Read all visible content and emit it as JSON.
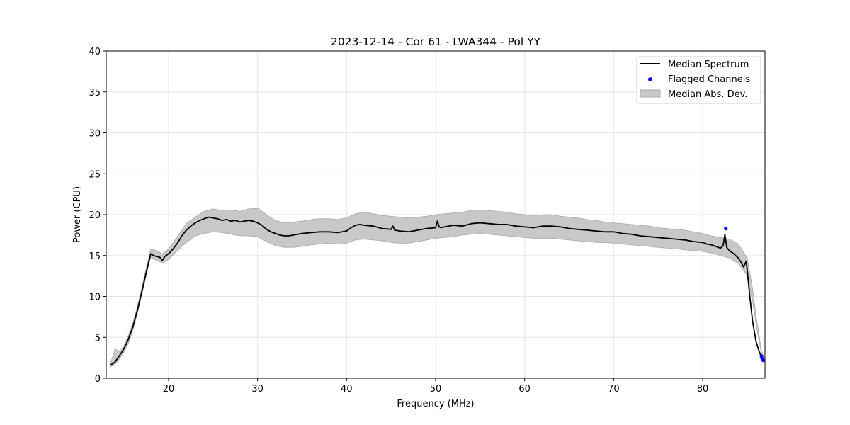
{
  "chart_data": {
    "type": "line",
    "title": "2023-12-14 - Cor 61 - LWA344 - Pol YY",
    "xlabel": "Frequency (MHz)",
    "ylabel": "Power (CPU)",
    "xlim": [
      13.0,
      87.0
    ],
    "ylim": [
      0,
      40
    ],
    "x_ticks": [
      20,
      30,
      40,
      50,
      60,
      70,
      80
    ],
    "y_ticks": [
      0,
      5,
      10,
      15,
      20,
      25,
      30,
      35,
      40
    ],
    "grid": true,
    "legend_position": "top-right",
    "colors": {
      "median": "#000000",
      "flagged": "#0000ff",
      "band": "#c8c8c8",
      "band_edge": "#a8a8a8"
    },
    "series": [
      {
        "name": "Median Spectrum",
        "kind": "line",
        "x": [
          13.5,
          14.0,
          14.5,
          15.0,
          15.5,
          16.0,
          16.5,
          17.0,
          17.5,
          18.0,
          18.3,
          18.6,
          19.0,
          19.3,
          19.6,
          20.0,
          20.5,
          21.0,
          21.5,
          22.0,
          22.5,
          23.0,
          23.5,
          24.0,
          24.5,
          25.0,
          25.5,
          26.0,
          26.5,
          27.0,
          27.5,
          28.0,
          28.5,
          29.0,
          29.5,
          30.0,
          30.5,
          31.0,
          31.5,
          32.0,
          32.5,
          33.0,
          33.5,
          34.0,
          35.0,
          36.0,
          37.0,
          38.0,
          39.0,
          40.0,
          40.5,
          41.0,
          41.5,
          42.0,
          43.0,
          44.0,
          45.0,
          45.2,
          45.4,
          46.0,
          47.0,
          48.0,
          49.0,
          50.0,
          50.2,
          50.4,
          50.6,
          51.0,
          52.0,
          53.0,
          54.0,
          55.0,
          56.0,
          57.0,
          58.0,
          59.0,
          60.0,
          61.0,
          62.0,
          63.0,
          64.0,
          65.0,
          66.0,
          67.0,
          68.0,
          69.0,
          70.0,
          71.0,
          72.0,
          73.0,
          74.0,
          75.0,
          76.0,
          77.0,
          78.0,
          79.0,
          80.0,
          80.5,
          81.0,
          81.5,
          82.0,
          82.3,
          82.5,
          82.7,
          83.0,
          83.5,
          84.0,
          84.3,
          84.6,
          84.9,
          85.0,
          85.3,
          85.6,
          86.0,
          86.3,
          86.6,
          86.9
        ],
        "y": [
          1.6,
          2.0,
          2.8,
          3.6,
          4.8,
          6.3,
          8.3,
          10.6,
          13.0,
          15.2,
          15.0,
          14.9,
          14.8,
          14.4,
          14.9,
          15.2,
          15.8,
          16.5,
          17.4,
          18.1,
          18.6,
          19.0,
          19.3,
          19.5,
          19.7,
          19.6,
          19.5,
          19.3,
          19.4,
          19.2,
          19.3,
          19.1,
          19.2,
          19.3,
          19.2,
          19.0,
          18.7,
          18.2,
          17.9,
          17.7,
          17.5,
          17.4,
          17.4,
          17.5,
          17.7,
          17.8,
          17.9,
          17.9,
          17.8,
          18.0,
          18.4,
          18.7,
          18.8,
          18.7,
          18.6,
          18.3,
          18.2,
          18.6,
          18.1,
          18.0,
          17.9,
          18.1,
          18.3,
          18.4,
          19.2,
          18.5,
          18.4,
          18.5,
          18.7,
          18.6,
          18.9,
          19.0,
          18.9,
          18.8,
          18.8,
          18.6,
          18.5,
          18.4,
          18.6,
          18.6,
          18.5,
          18.3,
          18.2,
          18.1,
          18.0,
          17.9,
          17.9,
          17.7,
          17.6,
          17.4,
          17.3,
          17.2,
          17.1,
          17.0,
          16.9,
          16.7,
          16.6,
          16.4,
          16.3,
          16.1,
          15.9,
          16.2,
          17.6,
          16.0,
          15.6,
          15.2,
          14.7,
          14.2,
          13.6,
          14.3,
          13.2,
          10.0,
          7.0,
          4.5,
          3.4,
          2.6,
          2.2
        ]
      },
      {
        "name": "Flagged Channels",
        "kind": "scatter",
        "x": [
          82.6,
          86.6,
          86.7,
          86.8
        ],
        "y": [
          18.3,
          2.7,
          2.4,
          2.2
        ]
      },
      {
        "name": "Median Abs. Dev.",
        "kind": "band",
        "x": [
          13.5,
          14.0,
          14.5,
          15.0,
          15.5,
          16.0,
          16.5,
          17.0,
          17.5,
          18.0,
          18.6,
          19.3,
          20.0,
          21.0,
          22.0,
          23.0,
          24.0,
          25.0,
          26.0,
          27.0,
          28.0,
          29.0,
          30.0,
          31.0,
          32.0,
          33.0,
          34.0,
          35.0,
          36.0,
          37.0,
          38.0,
          39.0,
          40.0,
          41.0,
          42.0,
          43.0,
          44.0,
          45.0,
          46.0,
          47.0,
          48.0,
          49.0,
          50.0,
          51.0,
          52.0,
          53.0,
          54.0,
          55.0,
          56.0,
          57.0,
          58.0,
          59.0,
          60.0,
          61.0,
          62.0,
          63.0,
          64.0,
          65.0,
          66.0,
          67.0,
          68.0,
          69.0,
          70.0,
          71.0,
          72.0,
          73.0,
          74.0,
          75.0,
          76.0,
          77.0,
          78.0,
          79.0,
          80.0,
          81.0,
          82.0,
          83.0,
          84.0,
          84.6,
          85.0,
          85.6,
          86.0,
          86.6,
          86.9
        ],
        "lower": [
          1.4,
          1.7,
          2.4,
          3.2,
          4.3,
          5.9,
          7.9,
          10.2,
          12.6,
          14.8,
          14.4,
          14.1,
          14.5,
          15.6,
          16.6,
          17.4,
          17.7,
          17.9,
          17.8,
          17.6,
          17.4,
          17.4,
          17.3,
          16.7,
          16.2,
          16.0,
          16.0,
          16.1,
          16.3,
          16.4,
          16.5,
          16.4,
          16.5,
          16.9,
          17.0,
          16.9,
          16.8,
          16.6,
          16.5,
          16.5,
          16.7,
          16.9,
          17.1,
          17.2,
          17.3,
          17.5,
          17.6,
          17.7,
          17.6,
          17.5,
          17.4,
          17.3,
          17.2,
          17.1,
          17.1,
          17.1,
          17.0,
          16.9,
          16.8,
          16.7,
          16.6,
          16.6,
          16.5,
          16.4,
          16.3,
          16.2,
          16.1,
          16.0,
          15.9,
          15.8,
          15.7,
          15.6,
          15.5,
          15.3,
          15.0,
          14.7,
          14.0,
          13.2,
          12.5,
          9.5,
          6.6,
          3.0,
          2.0
        ],
        "upper": [
          1.9,
          3.6,
          3.2,
          4.0,
          5.3,
          6.8,
          8.8,
          11.1,
          13.5,
          15.8,
          15.6,
          15.2,
          15.8,
          17.3,
          18.9,
          19.7,
          20.4,
          20.7,
          20.5,
          20.6,
          20.4,
          20.7,
          20.8,
          20.0,
          19.3,
          19.0,
          19.1,
          19.2,
          19.4,
          19.5,
          19.5,
          19.4,
          19.6,
          20.1,
          20.3,
          20.1,
          19.9,
          19.8,
          19.7,
          19.6,
          19.7,
          19.8,
          20.0,
          20.1,
          20.2,
          20.3,
          20.5,
          20.6,
          20.5,
          20.4,
          20.3,
          20.1,
          20.0,
          19.9,
          20.0,
          20.0,
          19.8,
          19.7,
          19.6,
          19.4,
          19.3,
          19.1,
          19.0,
          18.9,
          18.8,
          18.7,
          18.6,
          18.4,
          18.3,
          18.2,
          18.1,
          17.9,
          17.7,
          17.4,
          17.2,
          17.0,
          16.4,
          15.4,
          14.7,
          11.0,
          7.6,
          3.4,
          2.6
        ]
      }
    ]
  }
}
